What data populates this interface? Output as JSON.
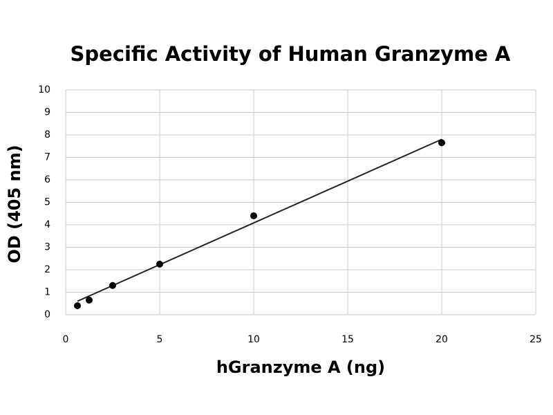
{
  "chart_data": {
    "type": "scatter",
    "title": "Specific Activity of Human Granzyme A",
    "x_label": "hGranzyme A (ng)",
    "y_label": "OD (405 nm)",
    "x": [
      0.625,
      1.25,
      2.5,
      5,
      10,
      20
    ],
    "values": [
      0.4,
      0.65,
      1.3,
      2.25,
      4.4,
      7.65
    ],
    "color": "#000000",
    "trendline": {
      "x": [
        0.625,
        20
      ],
      "values": [
        0.6,
        7.8
      ],
      "color": "#222222"
    },
    "xlim": [
      0,
      25
    ],
    "xticks": [
      0,
      5,
      10,
      15,
      20,
      25
    ],
    "ylim": [
      0,
      10
    ],
    "yticks": [
      0,
      1,
      2,
      3,
      4,
      5,
      6,
      7,
      8,
      9,
      10
    ],
    "grid": true
  }
}
